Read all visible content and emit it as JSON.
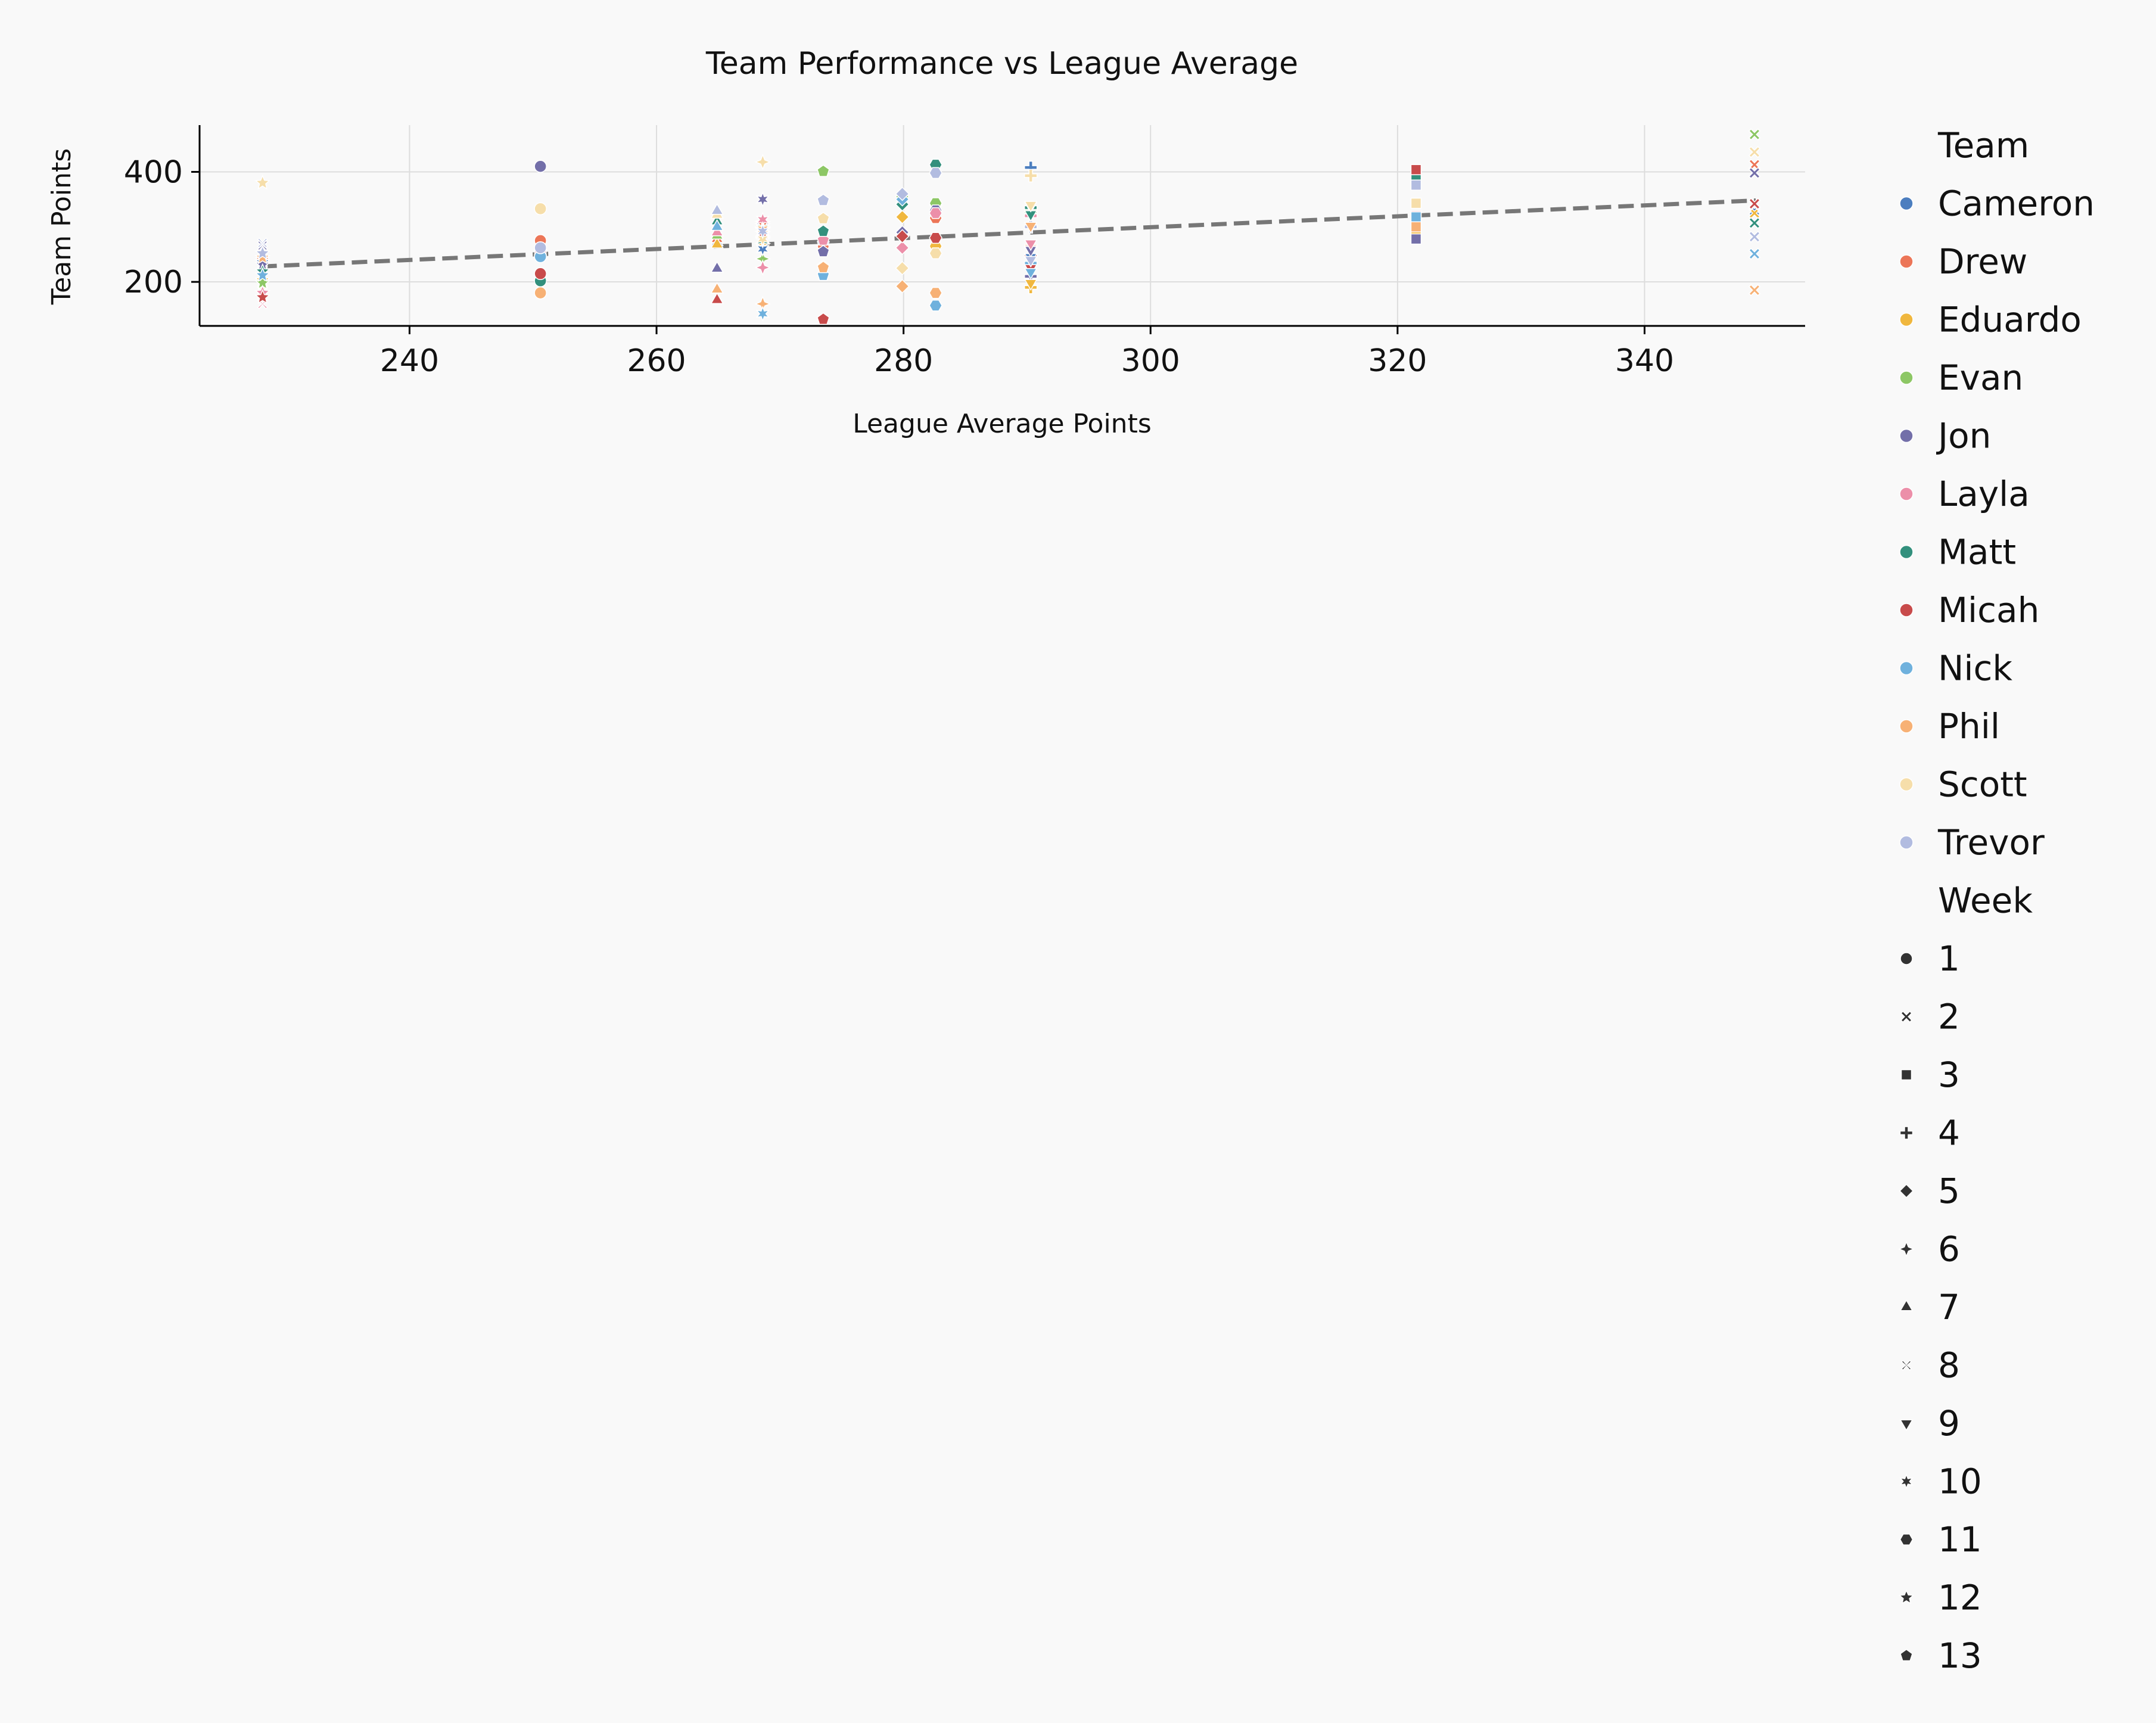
{
  "chart_data": {
    "type": "scatter",
    "title": "Team Performance vs League Average",
    "xlabel": "League Average Points",
    "ylabel": "Team Points",
    "xlim": [
      223,
      353
    ],
    "ylim": [
      120,
      485
    ],
    "xticks": [
      240,
      260,
      280,
      300,
      320,
      340
    ],
    "yticks": [
      200,
      400
    ],
    "grid": true,
    "legend_placement": "right, outside",
    "legend_hue_title": "Team",
    "legend_style_title": "Week",
    "teams": [
      "Cameron",
      "Drew",
      "Eduardo",
      "Evan",
      "Jon",
      "Layla",
      "Matt",
      "Micah",
      "Nick",
      "Phil",
      "Scott",
      "Trevor"
    ],
    "team_colors": [
      "#4c7ebf",
      "#ec7658",
      "#f0b73e",
      "#8dc765",
      "#736fa9",
      "#ec8fa9",
      "#33907d",
      "#c84b4b",
      "#6fb1dd",
      "#f7b175",
      "#f6deaa",
      "#b2bce0"
    ],
    "weeks": [
      "1",
      "2",
      "3",
      "4",
      "5",
      "6",
      "7",
      "8",
      "9",
      "10",
      "11",
      "12",
      "13"
    ],
    "week_markers": [
      "circle",
      "x",
      "square",
      "plus",
      "diamond",
      "star4",
      "triangle-up",
      "tri-x",
      "triangle-down",
      "star6",
      "hexagon",
      "star5",
      "pentagon"
    ],
    "trend_line": {
      "style": "dashed",
      "color": "#777777",
      "x": [
        228,
        349
      ],
      "y": [
        228,
        348
      ]
    },
    "week_league_avg": [
      250.6,
      348.9,
      321.5,
      290.3,
      279.9,
      268.6,
      264.9,
      228.1,
      290.3,
      268.6,
      282.6,
      228.1,
      273.5
    ],
    "points": [
      {
        "week": 1,
        "team": "Cameron",
        "x": 250.6,
        "y": 248
      },
      {
        "week": 1,
        "team": "Drew",
        "x": 250.6,
        "y": 275
      },
      {
        "week": 1,
        "team": "Eduardo",
        "x": 250.6,
        "y": 212
      },
      {
        "week": 1,
        "team": "Evan",
        "x": 250.6,
        "y": 262
      },
      {
        "week": 1,
        "team": "Jon",
        "x": 250.6,
        "y": 410
      },
      {
        "week": 1,
        "team": "Layla",
        "x": 250.6,
        "y": 257
      },
      {
        "week": 1,
        "team": "Matt",
        "x": 250.6,
        "y": 202
      },
      {
        "week": 1,
        "team": "Micah",
        "x": 250.6,
        "y": 215
      },
      {
        "week": 1,
        "team": "Nick",
        "x": 250.6,
        "y": 246
      },
      {
        "week": 1,
        "team": "Phil",
        "x": 250.6,
        "y": 180
      },
      {
        "week": 1,
        "team": "Scott",
        "x": 250.6,
        "y": 333
      },
      {
        "week": 1,
        "team": "Trevor",
        "x": 250.6,
        "y": 262
      },
      {
        "week": 2,
        "team": "Cameron",
        "x": 348.9,
        "y": 330
      },
      {
        "week": 2,
        "team": "Drew",
        "x": 348.9,
        "y": 413
      },
      {
        "week": 2,
        "team": "Eduardo",
        "x": 348.9,
        "y": 325
      },
      {
        "week": 2,
        "team": "Evan",
        "x": 348.9,
        "y": 468
      },
      {
        "week": 2,
        "team": "Jon",
        "x": 348.9,
        "y": 398
      },
      {
        "week": 2,
        "team": "Layla",
        "x": 348.9,
        "y": 340
      },
      {
        "week": 2,
        "team": "Matt",
        "x": 348.9,
        "y": 307
      },
      {
        "week": 2,
        "team": "Micah",
        "x": 348.9,
        "y": 342
      },
      {
        "week": 2,
        "team": "Nick",
        "x": 348.9,
        "y": 251
      },
      {
        "week": 2,
        "team": "Phil",
        "x": 348.9,
        "y": 185
      },
      {
        "week": 2,
        "team": "Scott",
        "x": 348.9,
        "y": 436
      },
      {
        "week": 2,
        "team": "Trevor",
        "x": 348.9,
        "y": 282
      },
      {
        "week": 3,
        "team": "Cameron",
        "x": 321.5,
        "y": 285
      },
      {
        "week": 3,
        "team": "Drew",
        "x": 321.5,
        "y": 296
      },
      {
        "week": 3,
        "team": "Eduardo",
        "x": 321.5,
        "y": 290
      },
      {
        "week": 3,
        "team": "Evan",
        "x": 321.5,
        "y": 395
      },
      {
        "week": 3,
        "team": "Jon",
        "x": 321.5,
        "y": 278
      },
      {
        "week": 3,
        "team": "Layla",
        "x": 321.5,
        "y": 320
      },
      {
        "week": 3,
        "team": "Matt",
        "x": 321.5,
        "y": 389
      },
      {
        "week": 3,
        "team": "Micah",
        "x": 321.5,
        "y": 404
      },
      {
        "week": 3,
        "team": "Nick",
        "x": 321.5,
        "y": 318
      },
      {
        "week": 3,
        "team": "Phil",
        "x": 321.5,
        "y": 300
      },
      {
        "week": 3,
        "team": "Scott",
        "x": 321.5,
        "y": 343
      },
      {
        "week": 3,
        "team": "Trevor",
        "x": 321.5,
        "y": 376
      },
      {
        "week": 4,
        "team": "Cameron",
        "x": 290.3,
        "y": 408
      },
      {
        "week": 4,
        "team": "Drew",
        "x": 290.3,
        "y": 300
      },
      {
        "week": 4,
        "team": "Eduardo",
        "x": 290.3,
        "y": 190
      },
      {
        "week": 4,
        "team": "Evan",
        "x": 290.3,
        "y": 328
      },
      {
        "week": 4,
        "team": "Jon",
        "x": 290.3,
        "y": 210
      },
      {
        "week": 4,
        "team": "Layla",
        "x": 290.3,
        "y": 320
      },
      {
        "week": 4,
        "team": "Matt",
        "x": 290.3,
        "y": 335
      },
      {
        "week": 4,
        "team": "Micah",
        "x": 290.3,
        "y": 248
      },
      {
        "week": 4,
        "team": "Nick",
        "x": 290.3,
        "y": 234
      },
      {
        "week": 4,
        "team": "Phil",
        "x": 290.3,
        "y": 265
      },
      {
        "week": 4,
        "team": "Scott",
        "x": 290.3,
        "y": 393
      },
      {
        "week": 4,
        "team": "Trevor",
        "x": 290.3,
        "y": 300
      },
      {
        "week": 5,
        "team": "Cameron",
        "x": 279.9,
        "y": 343
      },
      {
        "week": 5,
        "team": "Drew",
        "x": 279.9,
        "y": 285
      },
      {
        "week": 5,
        "team": "Eduardo",
        "x": 279.9,
        "y": 318
      },
      {
        "week": 5,
        "team": "Evan",
        "x": 279.9,
        "y": 355
      },
      {
        "week": 5,
        "team": "Jon",
        "x": 279.9,
        "y": 290
      },
      {
        "week": 5,
        "team": "Layla",
        "x": 279.9,
        "y": 262
      },
      {
        "week": 5,
        "team": "Matt",
        "x": 279.9,
        "y": 341
      },
      {
        "week": 5,
        "team": "Micah",
        "x": 279.9,
        "y": 283
      },
      {
        "week": 5,
        "team": "Nick",
        "x": 279.9,
        "y": 350
      },
      {
        "week": 5,
        "team": "Phil",
        "x": 279.9,
        "y": 192
      },
      {
        "week": 5,
        "team": "Scott",
        "x": 279.9,
        "y": 225
      },
      {
        "week": 5,
        "team": "Trevor",
        "x": 279.9,
        "y": 360
      },
      {
        "week": 6,
        "team": "Cameron",
        "x": 268.6,
        "y": 298
      },
      {
        "week": 6,
        "team": "Drew",
        "x": 268.6,
        "y": 310
      },
      {
        "week": 6,
        "team": "Eduardo",
        "x": 268.6,
        "y": 270
      },
      {
        "week": 6,
        "team": "Evan",
        "x": 268.6,
        "y": 242
      },
      {
        "week": 6,
        "team": "Jon",
        "x": 268.6,
        "y": 292
      },
      {
        "week": 6,
        "team": "Layla",
        "x": 268.6,
        "y": 226
      },
      {
        "week": 6,
        "team": "Matt",
        "x": 268.6,
        "y": 283
      },
      {
        "week": 6,
        "team": "Micah",
        "x": 268.6,
        "y": 280
      },
      {
        "week": 6,
        "team": "Nick",
        "x": 268.6,
        "y": 300
      },
      {
        "week": 6,
        "team": "Phil",
        "x": 268.6,
        "y": 160
      },
      {
        "week": 6,
        "team": "Scott",
        "x": 268.6,
        "y": 418
      },
      {
        "week": 6,
        "team": "Trevor",
        "x": 268.6,
        "y": 306
      },
      {
        "week": 7,
        "team": "Cameron",
        "x": 264.9,
        "y": 272
      },
      {
        "week": 7,
        "team": "Drew",
        "x": 264.9,
        "y": 278
      },
      {
        "week": 7,
        "team": "Eduardo",
        "x": 264.9,
        "y": 268
      },
      {
        "week": 7,
        "team": "Evan",
        "x": 264.9,
        "y": 284
      },
      {
        "week": 7,
        "team": "Jon",
        "x": 264.9,
        "y": 224
      },
      {
        "week": 7,
        "team": "Layla",
        "x": 264.9,
        "y": 290
      },
      {
        "week": 7,
        "team": "Matt",
        "x": 264.9,
        "y": 310
      },
      {
        "week": 7,
        "team": "Micah",
        "x": 264.9,
        "y": 167
      },
      {
        "week": 7,
        "team": "Nick",
        "x": 264.9,
        "y": 300
      },
      {
        "week": 7,
        "team": "Phil",
        "x": 264.9,
        "y": 186
      },
      {
        "week": 7,
        "team": "Scott",
        "x": 264.9,
        "y": 322
      },
      {
        "week": 7,
        "team": "Trevor",
        "x": 264.9,
        "y": 329
      },
      {
        "week": 8,
        "team": "Cameron",
        "x": 228.1,
        "y": 227
      },
      {
        "week": 8,
        "team": "Drew",
        "x": 228.1,
        "y": 237
      },
      {
        "week": 8,
        "team": "Eduardo",
        "x": 228.1,
        "y": 200
      },
      {
        "week": 8,
        "team": "Evan",
        "x": 228.1,
        "y": 210
      },
      {
        "week": 8,
        "team": "Jon",
        "x": 228.1,
        "y": 266
      },
      {
        "week": 8,
        "team": "Layla",
        "x": 228.1,
        "y": 160
      },
      {
        "week": 8,
        "team": "Matt",
        "x": 228.1,
        "y": 222
      },
      {
        "week": 8,
        "team": "Micah",
        "x": 228.1,
        "y": 233
      },
      {
        "week": 8,
        "team": "Nick",
        "x": 228.1,
        "y": 228
      },
      {
        "week": 8,
        "team": "Phil",
        "x": 228.1,
        "y": 196
      },
      {
        "week": 8,
        "team": "Scott",
        "x": 228.1,
        "y": 185
      },
      {
        "week": 8,
        "team": "Trevor",
        "x": 228.1,
        "y": 271
      },
      {
        "week": 9,
        "team": "Cameron",
        "x": 290.3,
        "y": 245
      },
      {
        "week": 9,
        "team": "Drew",
        "x": 290.3,
        "y": 260
      },
      {
        "week": 9,
        "team": "Eduardo",
        "x": 290.3,
        "y": 198
      },
      {
        "week": 9,
        "team": "Evan",
        "x": 290.3,
        "y": 338
      },
      {
        "week": 9,
        "team": "Jon",
        "x": 290.3,
        "y": 258
      },
      {
        "week": 9,
        "team": "Layla",
        "x": 290.3,
        "y": 270
      },
      {
        "week": 9,
        "team": "Matt",
        "x": 290.3,
        "y": 323
      },
      {
        "week": 9,
        "team": "Micah",
        "x": 290.3,
        "y": 225
      },
      {
        "week": 9,
        "team": "Nick",
        "x": 290.3,
        "y": 218
      },
      {
        "week": 9,
        "team": "Phil",
        "x": 290.3,
        "y": 302
      },
      {
        "week": 9,
        "team": "Scott",
        "x": 290.3,
        "y": 340
      },
      {
        "week": 9,
        "team": "Trevor",
        "x": 290.3,
        "y": 240
      },
      {
        "week": 10,
        "team": "Cameron",
        "x": 268.6,
        "y": 260
      },
      {
        "week": 10,
        "team": "Drew",
        "x": 268.6,
        "y": 304
      },
      {
        "week": 10,
        "team": "Eduardo",
        "x": 268.6,
        "y": 286
      },
      {
        "week": 10,
        "team": "Evan",
        "x": 268.6,
        "y": 298
      },
      {
        "week": 10,
        "team": "Jon",
        "x": 268.6,
        "y": 350
      },
      {
        "week": 10,
        "team": "Layla",
        "x": 268.6,
        "y": 313
      },
      {
        "week": 10,
        "team": "Matt",
        "x": 268.6,
        "y": 275
      },
      {
        "week": 10,
        "team": "Micah",
        "x": 268.6,
        "y": 284
      },
      {
        "week": 10,
        "team": "Nick",
        "x": 268.6,
        "y": 142
      },
      {
        "week": 10,
        "team": "Phil",
        "x": 268.6,
        "y": 296
      },
      {
        "week": 10,
        "team": "Scott",
        "x": 268.6,
        "y": 278
      },
      {
        "week": 10,
        "team": "Trevor",
        "x": 268.6,
        "y": 292
      },
      {
        "week": 11,
        "team": "Cameron",
        "x": 282.6,
        "y": 340
      },
      {
        "week": 11,
        "team": "Drew",
        "x": 282.6,
        "y": 316
      },
      {
        "week": 11,
        "team": "Eduardo",
        "x": 282.6,
        "y": 265
      },
      {
        "week": 11,
        "team": "Evan",
        "x": 282.6,
        "y": 343
      },
      {
        "week": 11,
        "team": "Jon",
        "x": 282.6,
        "y": 330
      },
      {
        "week": 11,
        "team": "Layla",
        "x": 282.6,
        "y": 325
      },
      {
        "week": 11,
        "team": "Matt",
        "x": 282.6,
        "y": 413
      },
      {
        "week": 11,
        "team": "Micah",
        "x": 282.6,
        "y": 280
      },
      {
        "week": 11,
        "team": "Nick",
        "x": 282.6,
        "y": 157
      },
      {
        "week": 11,
        "team": "Phil",
        "x": 282.6,
        "y": 180
      },
      {
        "week": 11,
        "team": "Scott",
        "x": 282.6,
        "y": 252
      },
      {
        "week": 11,
        "team": "Trevor",
        "x": 282.6,
        "y": 398
      },
      {
        "week": 12,
        "team": "Cameron",
        "x": 228.1,
        "y": 236
      },
      {
        "week": 12,
        "team": "Drew",
        "x": 228.1,
        "y": 240
      },
      {
        "week": 12,
        "team": "Eduardo",
        "x": 228.1,
        "y": 203
      },
      {
        "week": 12,
        "team": "Evan",
        "x": 228.1,
        "y": 198
      },
      {
        "week": 12,
        "team": "Jon",
        "x": 228.1,
        "y": 231
      },
      {
        "week": 12,
        "team": "Layla",
        "x": 228.1,
        "y": 180
      },
      {
        "week": 12,
        "team": "Matt",
        "x": 228.1,
        "y": 219
      },
      {
        "week": 12,
        "team": "Micah",
        "x": 228.1,
        "y": 172
      },
      {
        "week": 12,
        "team": "Nick",
        "x": 228.1,
        "y": 212
      },
      {
        "week": 12,
        "team": "Phil",
        "x": 228.1,
        "y": 244
      },
      {
        "week": 12,
        "team": "Scott",
        "x": 228.1,
        "y": 380
      },
      {
        "week": 12,
        "team": "Trevor",
        "x": 228.1,
        "y": 252
      },
      {
        "week": 13,
        "team": "Cameron",
        "x": 273.5,
        "y": 270
      },
      {
        "week": 13,
        "team": "Drew",
        "x": 273.5,
        "y": 262
      },
      {
        "week": 13,
        "team": "Eduardo",
        "x": 273.5,
        "y": 228
      },
      {
        "week": 13,
        "team": "Evan",
        "x": 273.5,
        "y": 401
      },
      {
        "week": 13,
        "team": "Jon",
        "x": 273.5,
        "y": 255
      },
      {
        "week": 13,
        "team": "Layla",
        "x": 273.5,
        "y": 276
      },
      {
        "week": 13,
        "team": "Matt",
        "x": 273.5,
        "y": 292
      },
      {
        "week": 13,
        "team": "Micah",
        "x": 273.5,
        "y": 132
      },
      {
        "week": 13,
        "team": "Nick",
        "x": 273.5,
        "y": 212
      },
      {
        "week": 13,
        "team": "Phil",
        "x": 273.5,
        "y": 226
      },
      {
        "week": 13,
        "team": "Scott",
        "x": 273.5,
        "y": 315
      },
      {
        "week": 13,
        "team": "Trevor",
        "x": 273.5,
        "y": 348
      }
    ]
  }
}
